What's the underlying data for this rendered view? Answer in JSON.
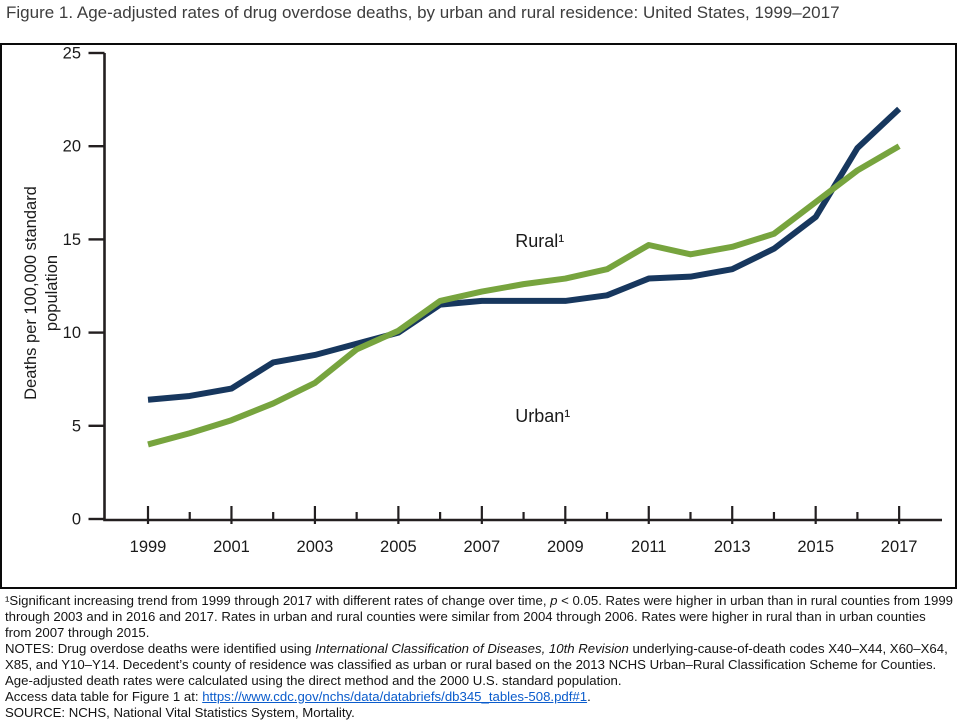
{
  "header": {
    "title": "Figure 1. Age-adjusted rates of drug overdose deaths, by urban and rural residence: United States, 1999–2017"
  },
  "chart_data": {
    "type": "line",
    "x": [
      1999,
      2000,
      2001,
      2002,
      2003,
      2004,
      2005,
      2006,
      2007,
      2008,
      2009,
      2010,
      2011,
      2012,
      2013,
      2014,
      2015,
      2016,
      2017
    ],
    "series": [
      {
        "name": "Urban¹",
        "color": "#17375e",
        "values": [
          6.4,
          6.6,
          7.0,
          8.4,
          8.8,
          9.4,
          10.0,
          11.5,
          11.7,
          11.7,
          11.7,
          12.0,
          12.9,
          13.0,
          13.4,
          14.5,
          16.2,
          19.9,
          22.0
        ]
      },
      {
        "name": "Rural¹",
        "color": "#77a43e",
        "values": [
          4.0,
          4.6,
          5.3,
          6.2,
          7.3,
          9.1,
          10.1,
          11.7,
          12.2,
          12.6,
          12.9,
          13.4,
          14.7,
          14.2,
          14.6,
          15.3,
          17.0,
          18.7,
          20.0
        ]
      }
    ],
    "title": "Figure 1. Age-adjusted rates of drug overdose deaths, by urban and rural residence: United States, 1999–2017",
    "xlabel": "",
    "ylabel": "Deaths per 100,000 standard population",
    "ylim": [
      0,
      25
    ],
    "yticks": [
      0,
      5,
      10,
      15,
      20,
      25
    ],
    "xtick_labels": [
      "1999",
      "2001",
      "2003",
      "2005",
      "2007",
      "2009",
      "2011",
      "2013",
      "2015",
      "2017"
    ],
    "grid": false,
    "legend": "inline-annotations",
    "annotations": [
      {
        "text": "Rural¹",
        "x": 2007.8,
        "y": 14.6
      },
      {
        "text": "Urban¹",
        "x": 2007.8,
        "y": 5.2
      }
    ]
  },
  "footnotes": {
    "significance": {
      "pre": "¹Significant increasing trend from 1999 through 2017 with different rates of change over time, ",
      "italic": "p",
      "post": " < 0.05. Rates were higher in urban than in rural counties from 1999 through 2003 and in 2016 and 2017. Rates in urban and rural counties were similar from 2004 through 2006. Rates were higher in rural than in urban counties from 2007 through 2015."
    },
    "notes": {
      "pre": "NOTES: Drug overdose deaths were identified using ",
      "italic": "International Classification of Diseases, 10th Revision",
      "post": " underlying-cause-of-death codes X40–X44, X60–X64, X85, and Y10–Y14. Decedent’s county of residence was classified as urban or rural based on the 2013 NCHS Urban–Rural Classification Scheme for Counties. Age-adjusted death rates were calculated using the direct method and the 2000 U.S. standard population."
    },
    "access": {
      "pre": "Access data table for Figure 1 at: ",
      "link": "https://www.cdc.gov/nchs/data/databriefs/db345_tables-508.pdf#1",
      "post": "."
    },
    "source": "SOURCE: NCHS, National Vital Statistics System, Mortality."
  },
  "colors": {
    "urban_line": "#17375e",
    "rural_line": "#77a43e",
    "axis": "#231f20",
    "link": "#0b5ccc",
    "text": "#1a1a1a"
  }
}
